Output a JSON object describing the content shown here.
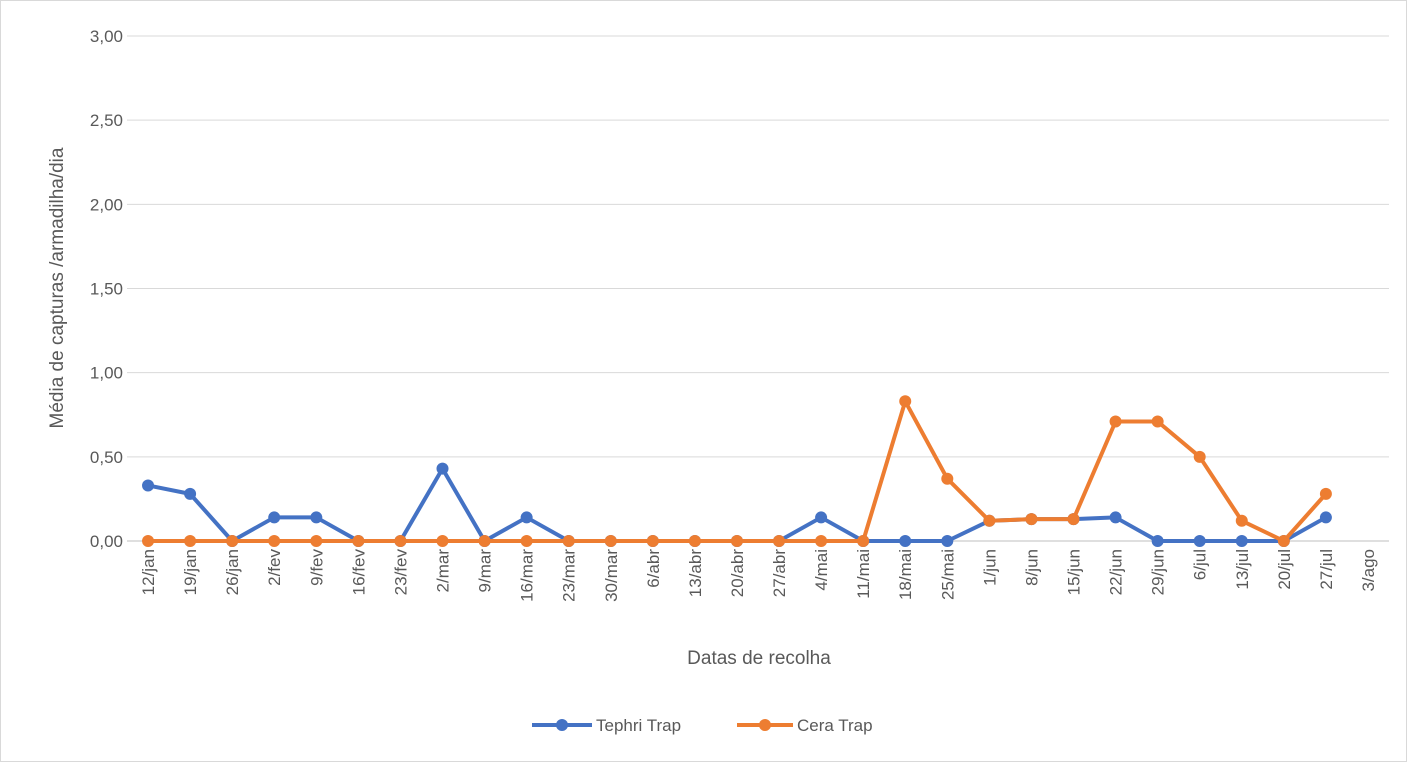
{
  "chart_data": {
    "type": "line",
    "title": "",
    "xlabel": "Datas de recolha",
    "ylabel": "Média de capturas /armadilha/dia",
    "ylim": [
      0,
      3
    ],
    "yticks": [
      "0,00",
      "0,50",
      "1,00",
      "1,50",
      "2,00",
      "2,50",
      "3,00"
    ],
    "grid": true,
    "legend_position": "bottom",
    "categories": [
      "12/jan",
      "19/jan",
      "26/jan",
      "2/fev",
      "9/fev",
      "16/fev",
      "23/fev",
      "2/mar",
      "9/mar",
      "16/mar",
      "23/mar",
      "30/mar",
      "6/abr",
      "13/abr",
      "20/abr",
      "27/abr",
      "4/mai",
      "11/mai",
      "18/mai",
      "25/mai",
      "1/jun",
      "8/jun",
      "15/jun",
      "22/jun",
      "29/jun",
      "6/jul",
      "13/jul",
      "20/jul",
      "27/jul",
      "3/ago"
    ],
    "series": [
      {
        "name": "Tephri Trap",
        "color": "#4472C4",
        "points": [
          [
            "12/jan",
            0.33
          ],
          [
            "19/jan",
            0.28
          ],
          [
            "26/jan",
            0
          ],
          [
            "2/fev",
            0.14
          ],
          [
            "9/fev",
            0.14
          ],
          [
            "16/fev",
            0
          ],
          [
            "23/fev",
            0
          ],
          [
            "2/mar",
            0.43
          ],
          [
            "9/mar",
            0
          ],
          [
            "16/mar",
            0.14
          ],
          [
            "23/mar",
            0
          ],
          [
            "30/mar",
            0
          ],
          [
            "6/abr",
            0
          ],
          [
            "13/abr",
            0
          ],
          [
            "20/abr",
            0
          ],
          [
            "27/abr",
            0
          ],
          [
            "4/mai",
            0.14
          ],
          [
            "11/mai",
            0
          ],
          [
            "18/mai",
            0
          ],
          [
            "25/mai",
            0
          ],
          [
            "1/jun",
            0.12
          ],
          [
            "8/jun",
            0.13
          ],
          [
            "15/jun",
            0.13
          ],
          [
            "22/jun",
            0.14
          ],
          [
            "29/jun",
            0
          ],
          [
            "6/jul",
            0
          ],
          [
            "13/jul",
            0
          ],
          [
            "20/jul",
            0
          ],
          [
            "27/jul",
            0.14
          ]
        ]
      },
      {
        "name": "Cera Trap",
        "color": "#ED7D31",
        "points": [
          [
            "12/jan",
            0
          ],
          [
            "19/jan",
            0
          ],
          [
            "26/jan",
            0
          ],
          [
            "2/fev",
            0
          ],
          [
            "9/fev",
            0
          ],
          [
            "16/fev",
            0
          ],
          [
            "23/fev",
            0
          ],
          [
            "2/mar",
            0
          ],
          [
            "9/mar",
            0
          ],
          [
            "16/mar",
            0
          ],
          [
            "23/mar",
            0
          ],
          [
            "30/mar",
            0
          ],
          [
            "6/abr",
            0
          ],
          [
            "13/abr",
            0
          ],
          [
            "20/abr",
            0
          ],
          [
            "27/abr",
            0
          ],
          [
            "4/mai",
            0
          ],
          [
            "11/mai",
            0
          ],
          [
            "18/mai",
            0.83
          ],
          [
            "25/mai",
            0.37
          ],
          [
            "1/jun",
            0.12
          ],
          [
            "8/jun",
            0.13
          ],
          [
            "15/jun",
            0.13
          ],
          [
            "22/jun",
            0.71
          ],
          [
            "29/jun",
            0.71
          ],
          [
            "6/jul",
            0.5
          ],
          [
            "13/jul",
            0.12
          ],
          [
            "20/jul",
            0
          ],
          [
            "27/jul",
            0.28
          ]
        ]
      }
    ]
  }
}
